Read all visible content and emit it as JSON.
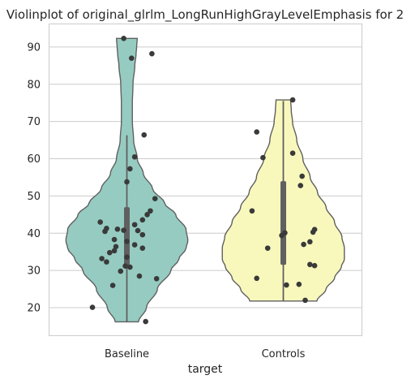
{
  "chart_data": {
    "type": "violin",
    "title": "Violinplot of original_glrlm_LongRunHighGrayLevelEmphasis for 2",
    "xlabel": "target",
    "ylabel": "",
    "categories": [
      "Baseline",
      "Controls"
    ],
    "ylim": [
      12.6,
      96.3
    ],
    "yticks": [
      20,
      30,
      40,
      50,
      60,
      70,
      80,
      90
    ],
    "grid": "horizontal",
    "colors": {
      "Baseline": "#96cbc1",
      "Controls": "#f8f8bd",
      "edge": "#606060",
      "points": "#3a3a3a",
      "grid": "#cccccc"
    },
    "series": [
      {
        "category": "Baseline",
        "range": [
          16.2,
          92.3
        ],
        "whiskers": [
          16.2,
          66.3
        ],
        "quartiles": [
          31.0,
          47.0
        ],
        "median": 40.0,
        "density_profile": [
          [
            16.2,
            0.19
          ],
          [
            20.0,
            0.32
          ],
          [
            25.0,
            0.5
          ],
          [
            30.0,
            0.72
          ],
          [
            33.0,
            0.85
          ],
          [
            36.0,
            0.97
          ],
          [
            38.0,
            1.0
          ],
          [
            41.0,
            0.97
          ],
          [
            45.0,
            0.8
          ],
          [
            48.0,
            0.62
          ],
          [
            52.0,
            0.42
          ],
          [
            56.0,
            0.27
          ],
          [
            60.0,
            0.17
          ],
          [
            65.0,
            0.11
          ],
          [
            70.0,
            0.09
          ],
          [
            75.0,
            0.09
          ],
          [
            80.0,
            0.1
          ],
          [
            85.0,
            0.13
          ],
          [
            88.0,
            0.15
          ],
          [
            90.0,
            0.16
          ],
          [
            92.3,
            0.17
          ]
        ],
        "points": [
          [
            -0.02,
            92.3
          ],
          [
            0.03,
            87.0
          ],
          [
            0.16,
            88.2
          ],
          [
            0.11,
            66.4
          ],
          [
            0.05,
            60.5
          ],
          [
            0.02,
            57.3
          ],
          [
            0.0,
            53.8
          ],
          [
            0.18,
            49.3
          ],
          [
            0.15,
            46.0
          ],
          [
            0.13,
            45.0
          ],
          [
            0.1,
            43.6
          ],
          [
            -0.17,
            43.0
          ],
          [
            0.05,
            42.3
          ],
          [
            -0.13,
            41.3
          ],
          [
            -0.06,
            41.1
          ],
          [
            -0.02,
            40.8
          ],
          [
            -0.14,
            40.5
          ],
          [
            0.07,
            40.7
          ],
          [
            0.1,
            39.6
          ],
          [
            -0.08,
            38.3
          ],
          [
            0.0,
            37.8
          ],
          [
            -0.07,
            36.4
          ],
          [
            0.05,
            36.9
          ],
          [
            0.1,
            36.0
          ],
          [
            -0.11,
            34.8
          ],
          [
            -0.08,
            35.3
          ],
          [
            0.0,
            33.6
          ],
          [
            -0.16,
            33.2
          ],
          [
            -0.13,
            32.3
          ],
          [
            -0.01,
            31.2
          ],
          [
            0.02,
            30.9
          ],
          [
            -0.04,
            29.8
          ],
          [
            0.08,
            28.5
          ],
          [
            0.19,
            27.8
          ],
          [
            -0.09,
            26.0
          ],
          [
            -0.22,
            20.1
          ],
          [
            0.12,
            16.3
          ]
        ]
      },
      {
        "category": "Controls",
        "range": [
          21.8,
          75.8
        ],
        "whiskers": [
          21.8,
          75.5
        ],
        "quartiles": [
          31.5,
          54.0
        ],
        "median": 40.5,
        "density_profile": [
          [
            21.8,
            0.55
          ],
          [
            25.0,
            0.7
          ],
          [
            28.0,
            0.84
          ],
          [
            31.0,
            0.95
          ],
          [
            33.0,
            1.0
          ],
          [
            36.0,
            1.0
          ],
          [
            39.0,
            0.96
          ],
          [
            43.0,
            0.84
          ],
          [
            47.0,
            0.7
          ],
          [
            51.0,
            0.56
          ],
          [
            55.0,
            0.44
          ],
          [
            60.0,
            0.32
          ],
          [
            65.0,
            0.22
          ],
          [
            70.0,
            0.15
          ],
          [
            73.0,
            0.13
          ],
          [
            75.8,
            0.12
          ]
        ],
        "points": [
          [
            0.06,
            75.8
          ],
          [
            -0.17,
            67.2
          ],
          [
            0.06,
            61.5
          ],
          [
            -0.13,
            60.3
          ],
          [
            0.12,
            55.3
          ],
          [
            0.11,
            52.8
          ],
          [
            -0.2,
            46.0
          ],
          [
            0.2,
            41.0
          ],
          [
            0.19,
            40.3
          ],
          [
            0.01,
            40.1
          ],
          [
            -0.01,
            39.4
          ],
          [
            0.17,
            37.7
          ],
          [
            0.13,
            37.0
          ],
          [
            -0.1,
            36.0
          ],
          [
            0.17,
            31.6
          ],
          [
            0.2,
            31.3
          ],
          [
            -0.17,
            27.9
          ],
          [
            0.02,
            26.1
          ],
          [
            0.1,
            26.3
          ],
          [
            0.14,
            22.0
          ]
        ]
      }
    ]
  }
}
